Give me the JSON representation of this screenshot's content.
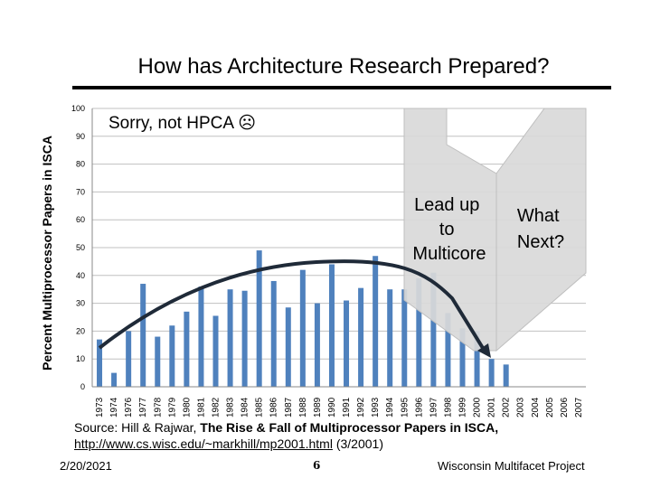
{
  "slide": {
    "title": "How has Architecture Research Prepared?",
    "source_prefix": "Source: Hill & Rajwar, ",
    "source_bold": "The Rise & Fall of Multiprocessor Papers in ISCA,",
    "source_url": "http://www.cs.wisc.edu/~markhill/mp2001.html",
    "source_suffix": " (3/2001)",
    "date": "2/20/2021",
    "page": "6",
    "org": "Wisconsin Multifacet Project"
  },
  "annotations": {
    "sorry": "Sorry, not HPCA ☹",
    "lead_up": [
      "Lead up",
      "to",
      "Multicore"
    ],
    "what_next": [
      "What",
      "Next?"
    ]
  },
  "colors": {
    "bar": "#4f81bd",
    "trend": "#1f2a38",
    "arrow_fill": "#d9d9d9",
    "arrow_stroke": "#bfbfbf",
    "grid": "#c0c0c0"
  },
  "chart_data": {
    "type": "bar",
    "ylabel": "Percent Multiprocessor Papers in ISCA",
    "xlabel": "",
    "ylim": [
      0,
      100
    ],
    "yticks": [
      0,
      10,
      20,
      30,
      40,
      50,
      60,
      70,
      80,
      90,
      100
    ],
    "grid": true,
    "categories": [
      "1973",
      "1974",
      "1976",
      "1977",
      "1978",
      "1979",
      "1980",
      "1981",
      "1982",
      "1983",
      "1984",
      "1985",
      "1986",
      "1987",
      "1988",
      "1989",
      "1990",
      "1991",
      "1992",
      "1993",
      "1994",
      "1995",
      "1996",
      "1997",
      "1998",
      "1999",
      "2000",
      "2001",
      "2002",
      "2003",
      "2004",
      "2005",
      "2006",
      "2007"
    ],
    "values": [
      17,
      5,
      20,
      37,
      18,
      22,
      27,
      36,
      25.5,
      35,
      34.5,
      49,
      38,
      28.5,
      42,
      30,
      44,
      31,
      35.5,
      47,
      35,
      35,
      39,
      41,
      26.5,
      21,
      20,
      10,
      8,
      null,
      null,
      null,
      null,
      null
    ]
  }
}
